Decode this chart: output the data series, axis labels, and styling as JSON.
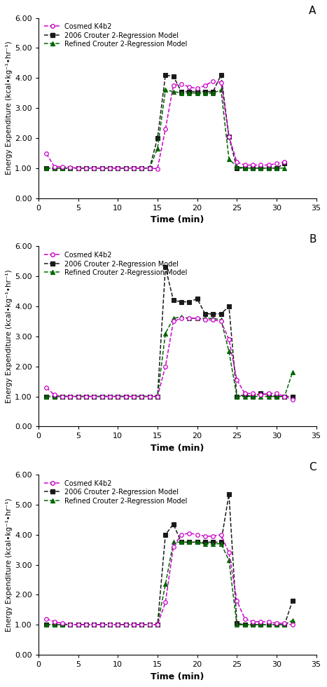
{
  "panels": [
    "A",
    "B",
    "C"
  ],
  "xlim": [
    0,
    35
  ],
  "ylim": [
    0.0,
    6.0
  ],
  "xticks": [
    0,
    5,
    10,
    15,
    20,
    25,
    30,
    35
  ],
  "yticks": [
    0.0,
    1.0,
    2.0,
    3.0,
    4.0,
    5.0,
    6.0
  ],
  "ytick_labels": [
    "0.00",
    "1.00",
    "2.00",
    "3.00",
    "4.00",
    "5.00",
    "6.00"
  ],
  "xlabel": "Time (min)",
  "ylabel": "Energy Expenditure (kcal•kg⁻¹•hr⁻¹)",
  "cosmed_color": "#cc00cc",
  "crouter2006_color": "#1a1a1a",
  "refined_color": "#006600",
  "legend_labels": [
    "Cosmed K4b2",
    "2006 Crouter 2-Regression Model",
    "Refined Crouter 2-Regression Model"
  ],
  "A": {
    "cosmed_x": [
      1,
      2,
      3,
      4,
      5,
      6,
      7,
      8,
      9,
      10,
      11,
      12,
      13,
      14,
      15,
      16,
      17,
      18,
      19,
      20,
      21,
      22,
      23,
      24,
      25,
      26,
      27,
      28,
      29,
      30,
      31
    ],
    "cosmed": [
      1.48,
      1.05,
      1.05,
      1.02,
      1.0,
      1.0,
      1.0,
      1.0,
      1.0,
      1.0,
      1.0,
      1.0,
      1.0,
      1.0,
      0.98,
      2.3,
      3.75,
      3.8,
      3.7,
      3.65,
      3.75,
      3.9,
      3.85,
      2.05,
      1.2,
      1.1,
      1.1,
      1.1,
      1.1,
      1.15,
      1.2
    ],
    "crouter2006_x": [
      1,
      2,
      3,
      4,
      5,
      6,
      7,
      8,
      9,
      10,
      11,
      12,
      13,
      14,
      15,
      16,
      17,
      18,
      19,
      20,
      21,
      22,
      23,
      24,
      25,
      26,
      27,
      28,
      29,
      30,
      31
    ],
    "crouter2006": [
      1.0,
      1.0,
      1.0,
      1.0,
      1.0,
      1.0,
      1.0,
      1.0,
      1.0,
      1.0,
      1.0,
      1.0,
      1.0,
      1.0,
      2.0,
      4.1,
      4.05,
      3.55,
      3.55,
      3.55,
      3.55,
      3.55,
      4.1,
      2.05,
      1.0,
      1.0,
      1.0,
      1.0,
      1.0,
      1.0,
      1.15
    ],
    "refined_x": [
      1,
      2,
      3,
      4,
      5,
      6,
      7,
      8,
      9,
      10,
      11,
      12,
      13,
      14,
      15,
      16,
      17,
      18,
      19,
      20,
      21,
      22,
      23,
      24,
      25,
      26,
      27,
      28,
      29,
      30,
      31
    ],
    "refined": [
      1.0,
      1.0,
      1.0,
      1.0,
      1.0,
      1.0,
      1.0,
      1.0,
      1.0,
      1.0,
      1.0,
      1.0,
      1.0,
      1.0,
      1.65,
      3.6,
      3.55,
      3.5,
      3.5,
      3.5,
      3.5,
      3.5,
      3.6,
      1.3,
      1.05,
      1.0,
      1.0,
      1.0,
      1.0,
      1.0,
      1.0
    ]
  },
  "B": {
    "cosmed_x": [
      1,
      2,
      3,
      4,
      5,
      6,
      7,
      8,
      9,
      10,
      11,
      12,
      13,
      14,
      15,
      16,
      17,
      18,
      19,
      20,
      21,
      22,
      23,
      24,
      25,
      26,
      27,
      28,
      29,
      30,
      31,
      32
    ],
    "cosmed": [
      1.3,
      1.05,
      1.0,
      1.0,
      1.0,
      1.0,
      1.0,
      1.0,
      1.0,
      1.0,
      1.0,
      1.0,
      1.0,
      1.0,
      1.0,
      2.0,
      3.5,
      3.6,
      3.6,
      3.6,
      3.55,
      3.55,
      3.5,
      2.9,
      1.55,
      1.1,
      1.1,
      1.05,
      1.1,
      1.1,
      1.0,
      0.9
    ],
    "crouter2006_x": [
      1,
      2,
      3,
      4,
      5,
      6,
      7,
      8,
      9,
      10,
      11,
      12,
      13,
      14,
      15,
      16,
      17,
      18,
      19,
      20,
      21,
      22,
      23,
      24,
      25,
      26,
      27,
      28,
      29,
      30,
      31,
      32
    ],
    "crouter2006": [
      1.0,
      1.0,
      1.0,
      1.0,
      1.0,
      1.0,
      1.0,
      1.0,
      1.0,
      1.0,
      1.0,
      1.0,
      1.0,
      1.0,
      1.0,
      5.3,
      4.2,
      4.15,
      4.15,
      4.25,
      3.75,
      3.75,
      3.75,
      4.0,
      1.0,
      1.05,
      1.0,
      1.1,
      1.05,
      1.0,
      1.0,
      1.0
    ],
    "refined_x": [
      1,
      2,
      3,
      4,
      5,
      6,
      7,
      8,
      9,
      10,
      11,
      12,
      13,
      14,
      15,
      16,
      17,
      18,
      19,
      20,
      21,
      22,
      23,
      24,
      25,
      26,
      27,
      28,
      29,
      30,
      31,
      32
    ],
    "refined": [
      1.0,
      1.0,
      1.0,
      1.0,
      1.0,
      1.0,
      1.0,
      1.0,
      1.0,
      1.0,
      1.0,
      1.0,
      1.0,
      1.0,
      1.0,
      3.1,
      3.6,
      3.65,
      3.6,
      3.6,
      3.6,
      3.6,
      3.55,
      2.5,
      1.0,
      1.0,
      1.0,
      1.0,
      1.0,
      1.0,
      1.0,
      1.8
    ]
  },
  "C": {
    "cosmed_x": [
      1,
      2,
      3,
      4,
      5,
      6,
      7,
      8,
      9,
      10,
      11,
      12,
      13,
      14,
      15,
      16,
      17,
      18,
      19,
      20,
      21,
      22,
      23,
      24,
      25,
      26,
      27,
      28,
      29,
      30,
      31,
      32
    ],
    "cosmed": [
      1.2,
      1.1,
      1.05,
      1.0,
      1.0,
      1.0,
      1.0,
      1.0,
      1.0,
      1.0,
      1.0,
      1.0,
      1.0,
      1.0,
      1.0,
      1.75,
      3.6,
      4.0,
      4.05,
      4.0,
      3.95,
      3.95,
      4.0,
      3.4,
      1.8,
      1.2,
      1.1,
      1.1,
      1.1,
      1.05,
      1.05,
      1.0
    ],
    "crouter2006_x": [
      1,
      2,
      3,
      4,
      5,
      6,
      7,
      8,
      9,
      10,
      11,
      12,
      13,
      14,
      15,
      16,
      17,
      18,
      19,
      20,
      21,
      22,
      23,
      24,
      25,
      26,
      27,
      28,
      29,
      30,
      31,
      32
    ],
    "crouter2006": [
      1.0,
      1.0,
      1.0,
      1.0,
      1.0,
      1.0,
      1.0,
      1.0,
      1.0,
      1.0,
      1.0,
      1.0,
      1.0,
      1.0,
      1.0,
      4.0,
      4.35,
      3.75,
      3.75,
      3.75,
      3.75,
      3.75,
      3.75,
      5.35,
      1.05,
      1.0,
      1.0,
      1.0,
      1.0,
      1.0,
      1.0,
      1.8
    ],
    "refined_x": [
      1,
      2,
      3,
      4,
      5,
      6,
      7,
      8,
      9,
      10,
      11,
      12,
      13,
      14,
      15,
      16,
      17,
      18,
      19,
      20,
      21,
      22,
      23,
      24,
      25,
      26,
      27,
      28,
      29,
      30,
      31,
      32
    ],
    "refined": [
      1.0,
      1.0,
      1.0,
      1.0,
      1.0,
      1.0,
      1.0,
      1.0,
      1.0,
      1.0,
      1.0,
      1.0,
      1.0,
      1.0,
      1.0,
      2.35,
      3.75,
      3.75,
      3.75,
      3.75,
      3.7,
      3.7,
      3.7,
      3.15,
      1.0,
      1.0,
      1.0,
      1.0,
      1.0,
      1.0,
      1.0,
      1.15
    ]
  }
}
